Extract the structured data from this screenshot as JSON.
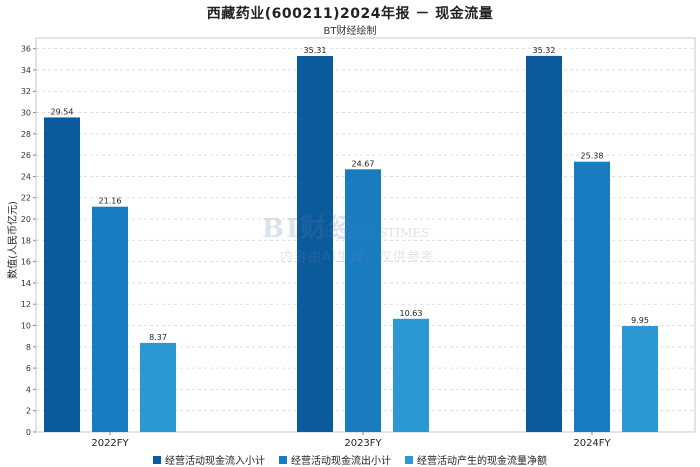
{
  "title": "西藏药业(600211)2024年报 － 现金流量",
  "subtitle": "BT财经绘制",
  "watermark": {
    "logo": "BI财经",
    "sub": "BUSINESSTIMES",
    "note": "内容由AI生成，仅供参考"
  },
  "colors": {
    "series": [
      "#0a5a9c",
      "#1a7cc0",
      "#2b98d4"
    ],
    "grid": "#d6d6d6",
    "axis": "#888888"
  },
  "chart_data": {
    "type": "bar",
    "categories": [
      "2022FY",
      "2023FY",
      "2024FY"
    ],
    "series": [
      {
        "name": "经营活动现金流入小计",
        "values": [
          29.54,
          35.31,
          35.32
        ]
      },
      {
        "name": "经营活动现金流出小计",
        "values": [
          21.16,
          24.67,
          25.38
        ]
      },
      {
        "name": "经营活动产生的现金流量净额",
        "values": [
          8.37,
          10.63,
          9.95
        ]
      }
    ],
    "ylabel": "数值(人民币亿元)",
    "xlabel": "",
    "ylim": [
      0,
      37
    ],
    "yticks": [
      0,
      2,
      4,
      6,
      8,
      10,
      12,
      14,
      16,
      18,
      20,
      22,
      24,
      26,
      28,
      30,
      32,
      34,
      36
    ],
    "grid": true,
    "legend": "bottom"
  }
}
